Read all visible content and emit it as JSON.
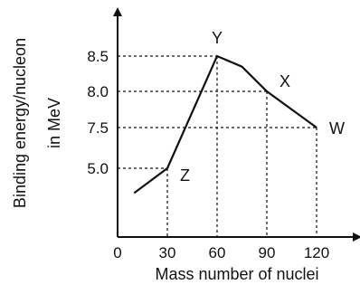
{
  "chart_data": {
    "type": "line",
    "title": "",
    "xlabel": "Mass number of nuclei",
    "ylabel_lines": [
      "Binding energy/nucleon",
      "in MeV"
    ],
    "x_ticks": [
      {
        "value": 0,
        "label": "0"
      },
      {
        "value": 30,
        "label": "30"
      },
      {
        "value": 60,
        "label": "60"
      },
      {
        "value": 90,
        "label": "90"
      },
      {
        "value": 120,
        "label": "120"
      }
    ],
    "y_ticks": [
      {
        "value": 5.0,
        "label": "5.0"
      },
      {
        "value": 7.5,
        "label": "7.5"
      },
      {
        "value": 8.0,
        "label": "8.0"
      },
      {
        "value": 8.5,
        "label": "8.5"
      }
    ],
    "series": [
      {
        "x": [
          10,
          30,
          60,
          75,
          90,
          105,
          120
        ],
        "y": [
          3.2,
          5.0,
          8.5,
          8.35,
          8.0,
          7.75,
          7.5
        ]
      }
    ],
    "points": [
      {
        "label": "Z",
        "x": 30,
        "y": 5.0
      },
      {
        "label": "Y",
        "x": 60,
        "y": 8.5
      },
      {
        "label": "X",
        "x": 90,
        "y": 8.0
      },
      {
        "label": "W",
        "x": 120,
        "y": 7.5
      }
    ],
    "grid": false,
    "style": {
      "ink": "#111111",
      "guide_dash": "3,3"
    }
  }
}
